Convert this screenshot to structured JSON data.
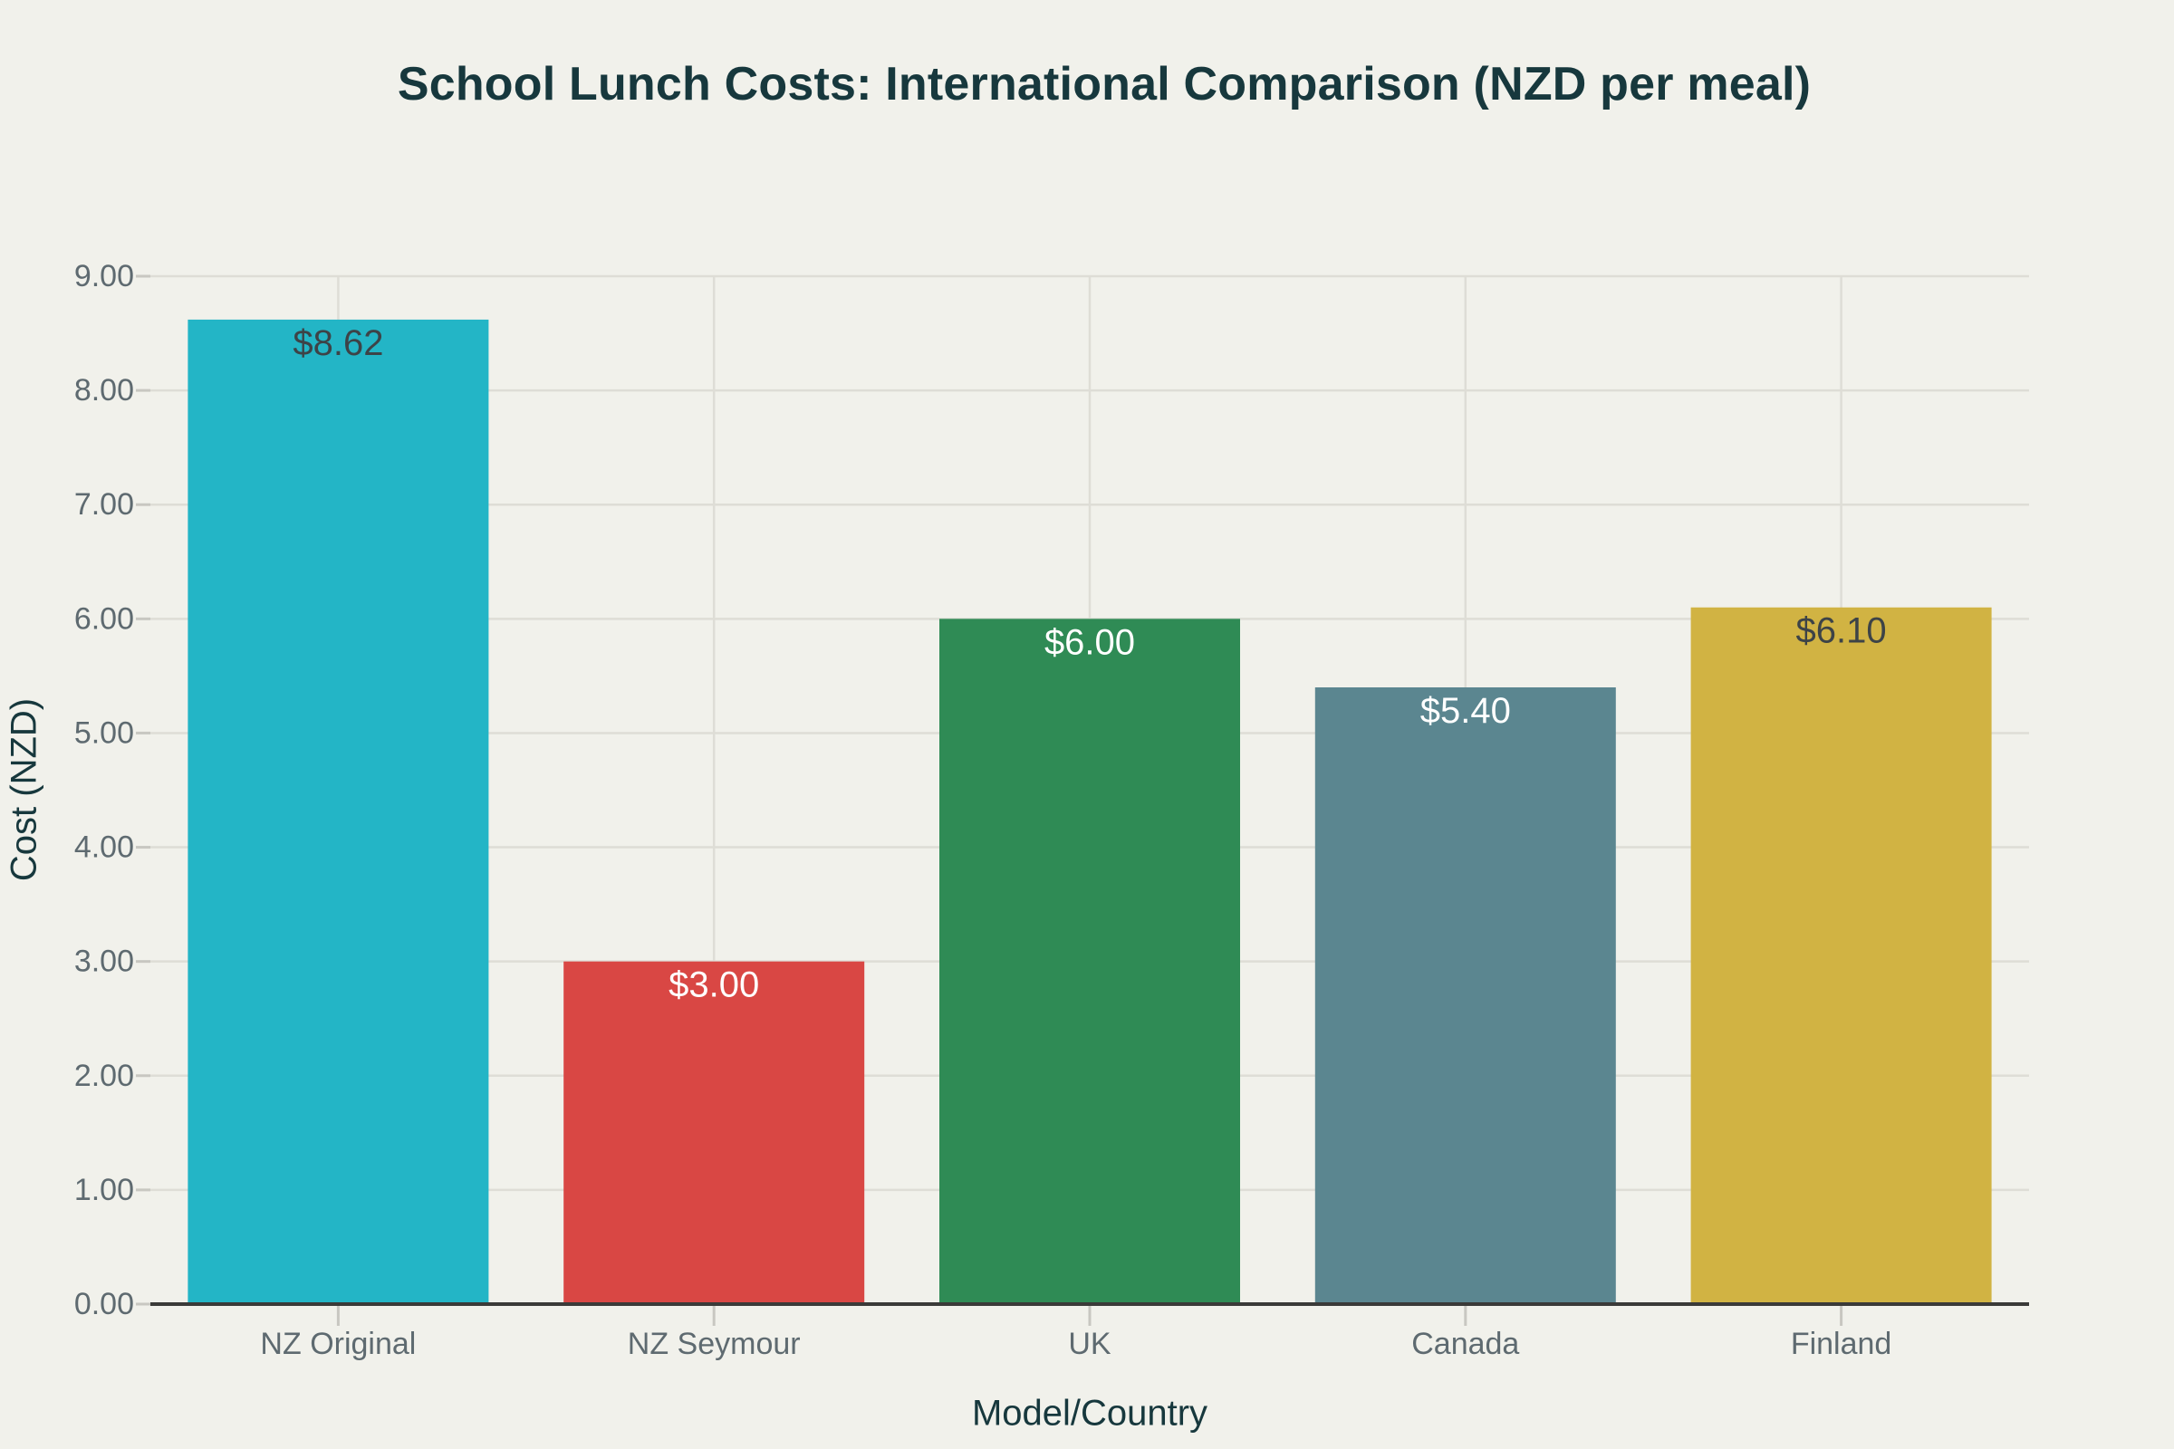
{
  "chart_data": {
    "type": "bar",
    "title": "School Lunch Costs: International Comparison (NZD per meal)",
    "xlabel": "Model/Country",
    "ylabel": "Cost (NZD)",
    "categories": [
      "NZ Original",
      "NZ Seymour",
      "UK",
      "Canada",
      "Finland"
    ],
    "values": [
      8.62,
      3.0,
      6.0,
      5.4,
      6.1
    ],
    "value_labels": [
      "$8.62",
      "$3.00",
      "$6.00",
      "$5.40",
      "$6.10"
    ],
    "bar_colors": [
      "#23B5C6",
      "#D94744",
      "#2F8B55",
      "#5B8690",
      "#D1B343"
    ],
    "value_label_colors": [
      "#3D4347",
      "#FFFFFF",
      "#FFFFFF",
      "#FFFFFF",
      "#3D4347"
    ],
    "ylim": [
      0,
      9
    ],
    "ytick_step": 1,
    "ytick_labels": [
      "0.00",
      "1.00",
      "2.00",
      "3.00",
      "4.00",
      "5.00",
      "6.00",
      "7.00",
      "8.00",
      "9.00"
    ],
    "grid": true,
    "legend": "none",
    "colors": {
      "background": "#F1F1EB",
      "gridline": "#DEDDD6",
      "tick_mark": "#C8C7C1",
      "axis_line": "#3A3A38",
      "tick_text": "#5E6A70",
      "title_text": "#17383D"
    }
  }
}
